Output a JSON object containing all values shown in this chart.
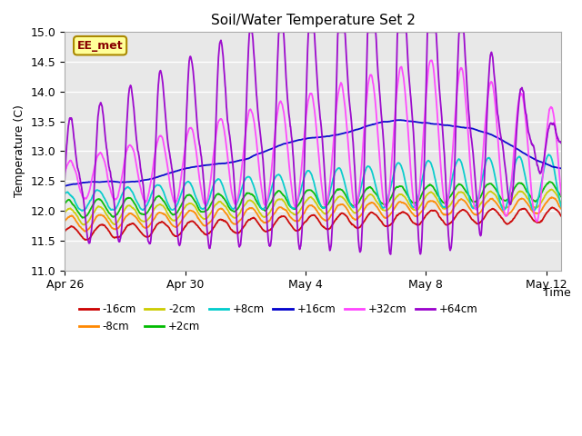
{
  "title": "Soil/Water Temperature Set 2",
  "xlabel": "Time",
  "ylabel": "Temperature (C)",
  "ylim": [
    11.0,
    15.0
  ],
  "yticks": [
    11.0,
    11.5,
    12.0,
    12.5,
    13.0,
    13.5,
    14.0,
    14.5,
    15.0
  ],
  "xlim_days": [
    0,
    16.5
  ],
  "xtick_positions": [
    0,
    4,
    8,
    12,
    16
  ],
  "xtick_labels": [
    "Apr 26",
    "Apr 30",
    "May 4",
    "May 8",
    "May 12"
  ],
  "background_color": "#e8e8e8",
  "series": {
    "-16cm": {
      "color": "#cc0000"
    },
    "-8cm": {
      "color": "#ff8800"
    },
    "-2cm": {
      "color": "#cccc00"
    },
    "+2cm": {
      "color": "#00bb00"
    },
    "+8cm": {
      "color": "#00cccc"
    },
    "+16cm": {
      "color": "#0000cc"
    },
    "+32cm": {
      "color": "#ff44ff"
    },
    "+64cm": {
      "color": "#9900cc"
    }
  },
  "legend_label": "EE_met",
  "legend_box_color": "#ffff99",
  "legend_box_border": "#996600"
}
